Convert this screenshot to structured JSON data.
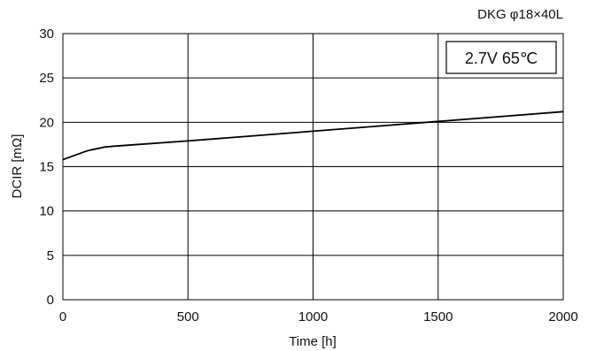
{
  "chart_data": {
    "type": "line",
    "title": "DKG φ18×40L",
    "annotation": "2.7V 65℃",
    "xlabel": "Time [h]",
    "ylabel": "DCIR [mΩ]",
    "xlim": [
      0,
      2000
    ],
    "ylim": [
      0,
      30
    ],
    "xticks": [
      "0",
      "500",
      "1000",
      "1500",
      "2000"
    ],
    "yticks": [
      "0",
      "5",
      "10",
      "15",
      "20",
      "25",
      "30"
    ],
    "grid": true,
    "series": [
      {
        "color": "#000000",
        "x": [
          0,
          50,
          100,
          150,
          200,
          500,
          1000,
          1500,
          2000
        ],
        "y": [
          15.8,
          16.3,
          16.8,
          17.1,
          17.3,
          17.9,
          19.0,
          20.1,
          21.2
        ]
      }
    ]
  }
}
